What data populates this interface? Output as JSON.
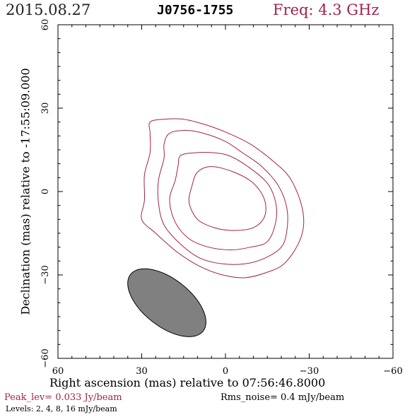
{
  "header": {
    "date": "2015.08.27",
    "source": "J0756-1755",
    "freq": "Freq: 4.3 GHz"
  },
  "axes": {
    "xlabel": "Right ascension (mas) relative to 07:56:46.8000",
    "ylabel": "Declination (mas) relative to -17:55:09.000"
  },
  "footer": {
    "peak": "Peak_lev=  0.033 Jy/beam",
    "rms": "Rms_noise=  0.4 mJy/beam",
    "levels": "Levels:   2,    4,    8,   16 mJy/beam"
  },
  "colors": {
    "contour": "#a3224c",
    "beam_fill": "#808080",
    "title_accent": "#a3224c"
  },
  "chart_data": {
    "type": "contour",
    "xlim": [
      60,
      -60
    ],
    "ylim": [
      -60,
      60
    ],
    "x_reversed": true,
    "x_ticks": [
      60,
      30,
      0,
      -30,
      -60
    ],
    "y_ticks": [
      -60,
      -30,
      0,
      30,
      60
    ],
    "x_tick_labels": [
      "60",
      "30",
      "0",
      "−30",
      "−60"
    ],
    "y_tick_labels": [
      "−60",
      "−30",
      "0",
      "30",
      "60"
    ],
    "levels_mJy_per_beam": [
      2,
      4,
      8,
      16
    ],
    "contours": [
      {
        "level": 2,
        "points": [
          [
            27,
            25
          ],
          [
            22,
            26
          ],
          [
            15,
            26
          ],
          [
            7,
            24
          ],
          [
            -1,
            21
          ],
          [
            -9,
            17
          ],
          [
            -17,
            11
          ],
          [
            -23,
            5
          ],
          [
            -27,
            -4
          ],
          [
            -28,
            -12
          ],
          [
            -26,
            -19
          ],
          [
            -21,
            -26
          ],
          [
            -15,
            -29
          ],
          [
            -7,
            -31
          ],
          [
            1,
            -30
          ],
          [
            9,
            -27
          ],
          [
            17,
            -22
          ],
          [
            25,
            -15
          ],
          [
            30,
            -10
          ],
          [
            29,
            -3
          ],
          [
            29,
            6
          ],
          [
            27,
            14
          ],
          [
            27,
            21
          ]
        ]
      },
      {
        "level": 4,
        "points": [
          [
            20,
            21
          ],
          [
            14,
            22
          ],
          [
            8,
            21
          ],
          [
            0,
            18
          ],
          [
            -6,
            14
          ],
          [
            -13,
            9
          ],
          [
            -19,
            2
          ],
          [
            -22,
            -6
          ],
          [
            -22,
            -14
          ],
          [
            -20,
            -20
          ],
          [
            -14,
            -24
          ],
          [
            -7,
            -26
          ],
          [
            1,
            -26
          ],
          [
            9,
            -24
          ],
          [
            16,
            -19
          ],
          [
            22,
            -12
          ],
          [
            24,
            -4
          ],
          [
            24,
            4
          ],
          [
            22,
            12
          ],
          [
            22,
            17
          ]
        ]
      },
      {
        "level": 8,
        "points": [
          [
            16,
            13
          ],
          [
            10,
            14
          ],
          [
            5,
            14
          ],
          [
            -1,
            13
          ],
          [
            -8,
            9
          ],
          [
            -15,
            3
          ],
          [
            -18,
            -4
          ],
          [
            -18,
            -11
          ],
          [
            -15,
            -18
          ],
          [
            -9,
            -20
          ],
          [
            -2,
            -21
          ],
          [
            6,
            -20
          ],
          [
            13,
            -17
          ],
          [
            18,
            -11
          ],
          [
            20,
            -3
          ],
          [
            18,
            4
          ],
          [
            17,
            9
          ]
        ]
      },
      {
        "level": 16,
        "points": [
          [
            10,
            7
          ],
          [
            5,
            9
          ],
          [
            -3,
            7
          ],
          [
            -10,
            3
          ],
          [
            -14,
            -3
          ],
          [
            -14,
            -9
          ],
          [
            -10,
            -13
          ],
          [
            -3,
            -14
          ],
          [
            4,
            -13
          ],
          [
            10,
            -10
          ],
          [
            13,
            -4
          ],
          [
            12,
            2
          ]
        ]
      }
    ],
    "beam": {
      "center_x_mas": 21,
      "center_y_mas": -40,
      "major_mas": 33,
      "minor_mas": 17,
      "position_angle_deg": -38
    }
  }
}
